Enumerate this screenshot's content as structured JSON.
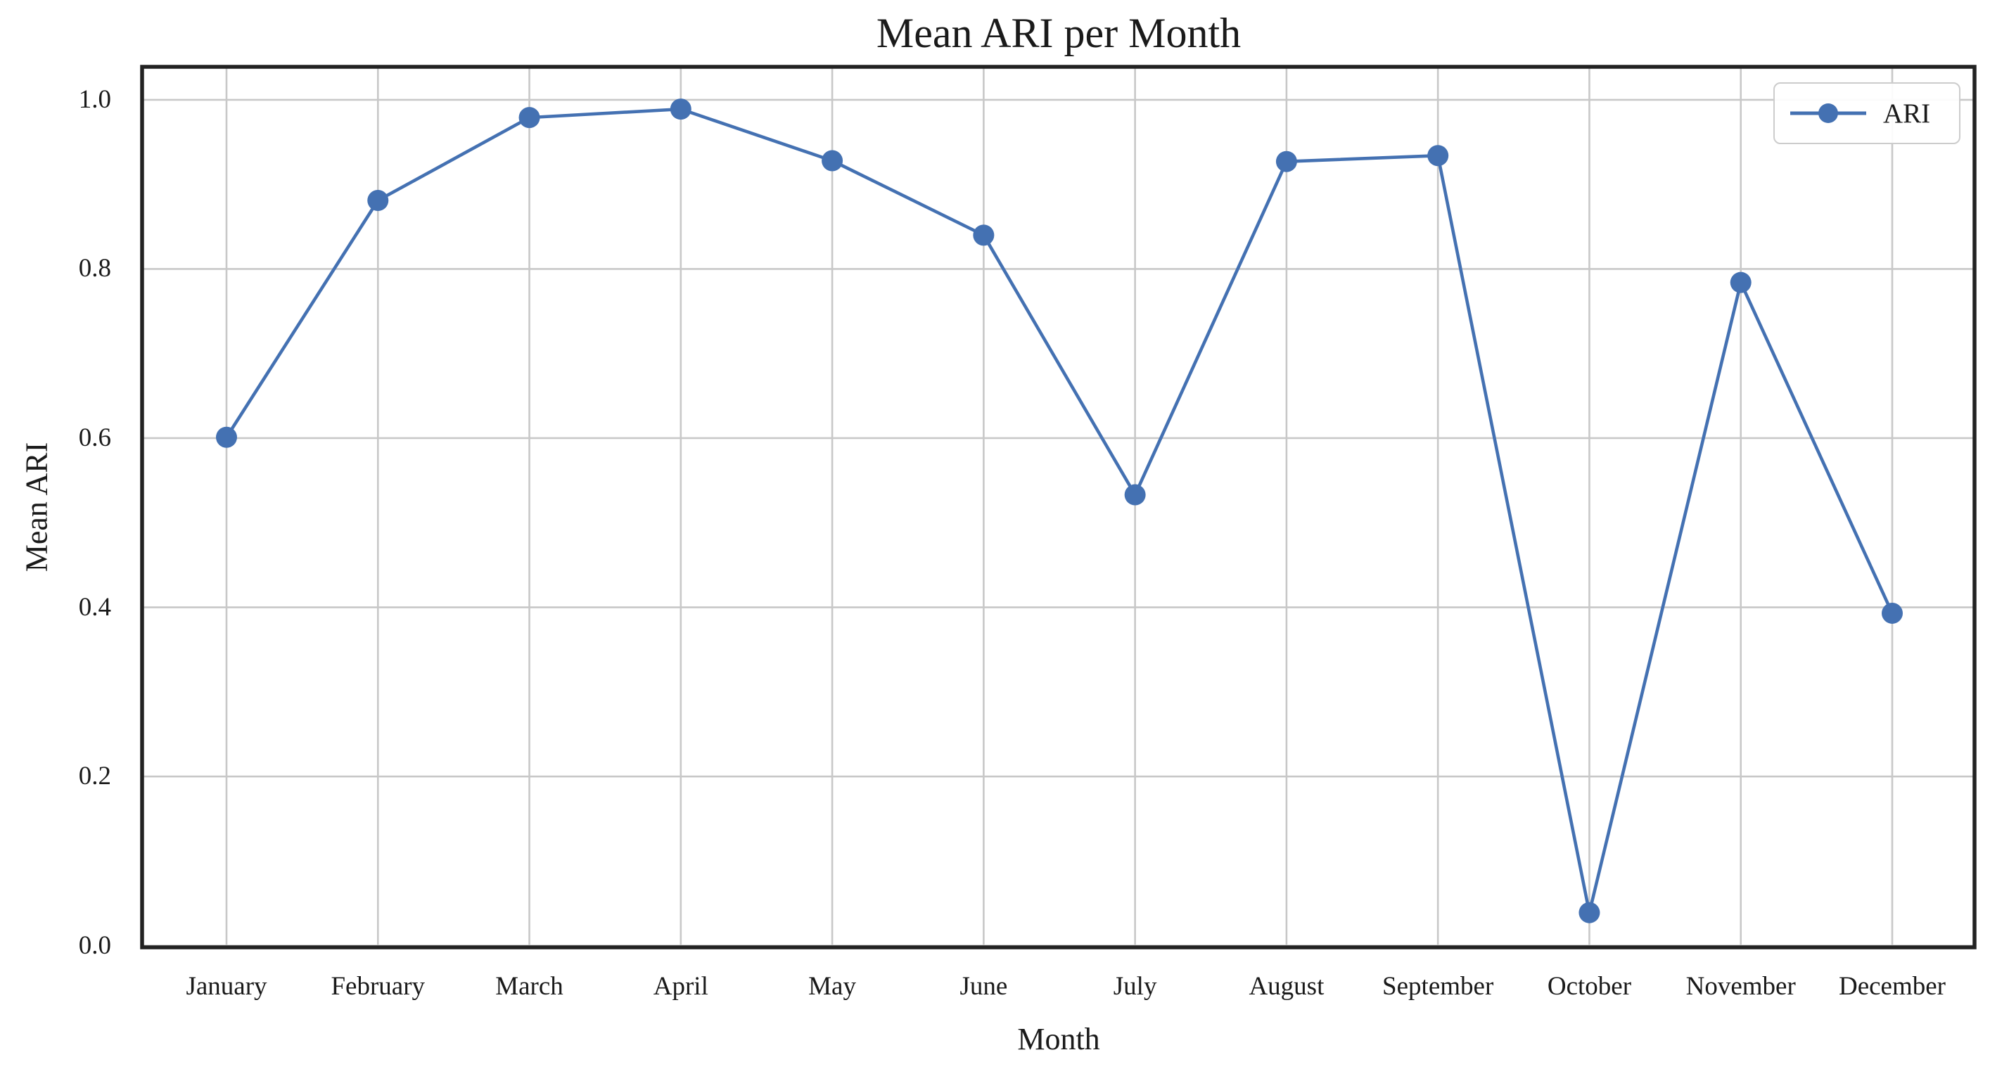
{
  "chart_data": {
    "type": "line",
    "title": "Mean ARI per Month",
    "xlabel": "Month",
    "ylabel": "Mean ARI",
    "legend": {
      "label": "ARI",
      "position": "upper right"
    },
    "categories": [
      "January",
      "February",
      "March",
      "April",
      "May",
      "June",
      "July",
      "August",
      "September",
      "October",
      "November",
      "December"
    ],
    "series": [
      {
        "name": "ARI",
        "values": [
          0.601,
          0.881,
          0.979,
          0.989,
          0.928,
          0.84,
          0.533,
          0.927,
          0.934,
          0.039,
          0.784,
          0.393
        ]
      }
    ],
    "y_ticks": [
      0.0,
      0.2,
      0.4,
      0.6,
      0.8,
      1.0
    ],
    "y_tick_labels": [
      "0.0",
      "0.2",
      "0.4",
      "0.6",
      "0.8",
      "1.0"
    ],
    "ylim": [
      -0.002,
      1.039
    ],
    "grid": true,
    "colors": {
      "line": "#4471b2",
      "marker": "#4471b2",
      "grid": "#c8c8c8",
      "spine": "#222222",
      "text": "#1a1a1a",
      "legend_border": "#cccccc",
      "background": "#ffffff"
    }
  }
}
